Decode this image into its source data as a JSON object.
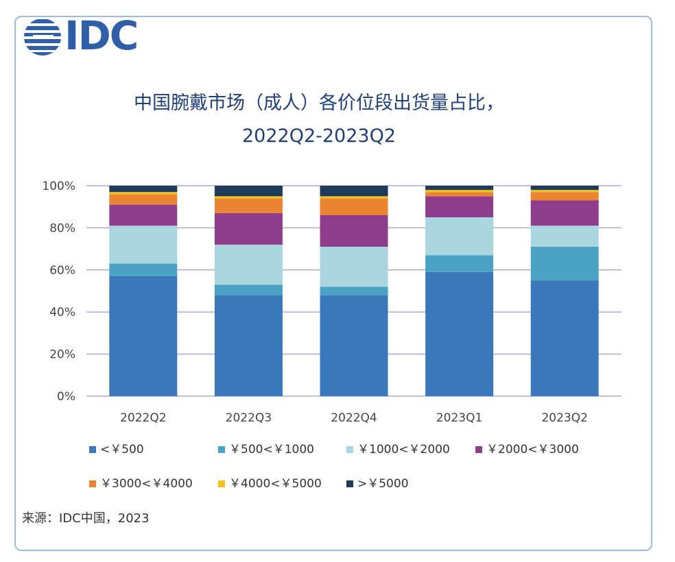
{
  "logo": {
    "text": "IDC",
    "icon": "idc-globe-icon"
  },
  "title_line1": "中国腕戴市场（成人）各价位段出货量占比，",
  "title_line2": "2022Q2-2023Q2",
  "source": "来源：IDC中国，2023",
  "colors": {
    "grid": "#a9a9d6",
    "axis_text": "#444444",
    "title": "#1f3f79",
    "frame": "#9bbbe0"
  },
  "chart_data": {
    "type": "bar",
    "stacked": true,
    "categories": [
      "2022Q2",
      "2022Q3",
      "2022Q4",
      "2023Q1",
      "2023Q2"
    ],
    "y_ticks": [
      "0%",
      "20%",
      "40%",
      "60%",
      "80%",
      "100%"
    ],
    "ylim": [
      0,
      100
    ],
    "grid": true,
    "legend_position": "bottom",
    "series": [
      {
        "name": "<￥500",
        "color": "#3b78bb",
        "values": [
          57,
          48,
          48,
          59,
          55
        ]
      },
      {
        "name": "￥500<￥1000",
        "color": "#4aa3c4",
        "values": [
          6,
          5,
          4,
          8,
          16
        ]
      },
      {
        "name": "￥1000<￥2000",
        "color": "#aad6e0",
        "values": [
          18,
          19,
          19,
          18,
          10
        ]
      },
      {
        "name": "￥2000<￥3000",
        "color": "#8e3d8c",
        "values": [
          10,
          15,
          15,
          10,
          12
        ]
      },
      {
        "name": "￥3000<￥4000",
        "color": "#eb8431",
        "values": [
          5,
          7,
          8,
          2,
          4
        ]
      },
      {
        "name": "￥4000<￥5000",
        "color": "#f0c419",
        "values": [
          1,
          1,
          1,
          1,
          1
        ]
      },
      {
        "name": ">￥5000",
        "color": "#1f3b5c",
        "values": [
          3,
          5,
          5,
          2,
          2
        ]
      }
    ]
  }
}
